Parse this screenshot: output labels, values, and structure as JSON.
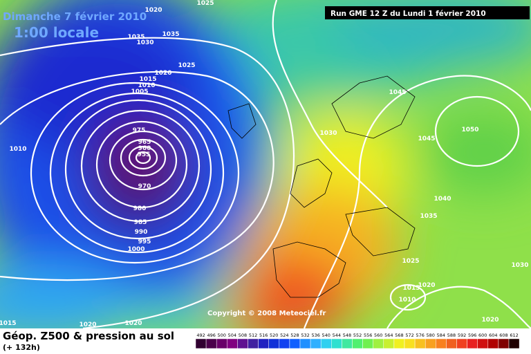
{
  "header": {
    "date": "Dimanche 7 février 2010",
    "time": "1:00 locale",
    "run": "Run GME 12 Z du Lundi 1 février 2010"
  },
  "copyright": "Copyright © 2008 Meteociel.fr",
  "legend": {
    "title": "Géop. Z500 & pression au sol",
    "lead": "(+ 132h)",
    "scale": [
      492,
      496,
      500,
      504,
      508,
      512,
      516,
      520,
      524,
      528,
      532,
      536,
      540,
      544,
      548,
      552,
      556,
      560,
      564,
      568,
      572,
      576,
      580,
      584,
      588,
      592,
      596,
      600,
      604,
      608,
      612
    ]
  },
  "isobar_labels": [
    "1020",
    "1025",
    "1035",
    "1035",
    "1030",
    "1025",
    "1020",
    "1015",
    "1010",
    "1005",
    "1010",
    "975",
    "965",
    "960",
    "955",
    "970",
    "980",
    "985",
    "990",
    "995",
    "1000",
    "1030",
    "1045",
    "1050",
    "1045",
    "1040",
    "1035",
    "1025",
    "1015",
    "1020",
    "1010",
    "1030",
    "1020",
    "1015",
    "1020",
    "1020"
  ]
}
